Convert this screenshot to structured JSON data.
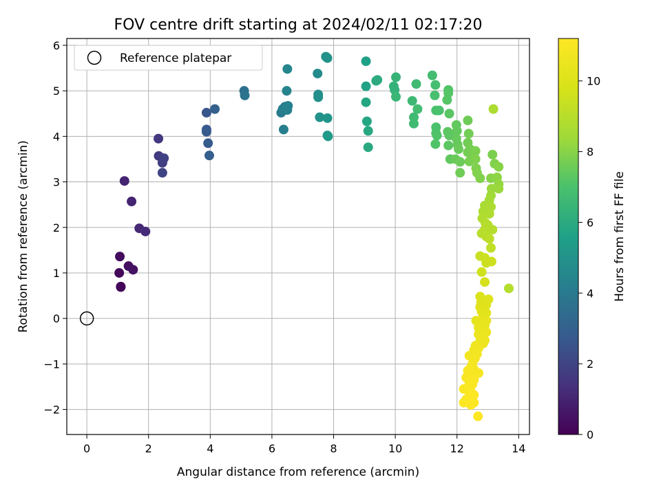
{
  "chart_data": {
    "type": "scatter",
    "title": "FOV centre drift starting at 2024/02/11 02:17:20",
    "xlabel": "Angular distance from reference (arcmin)",
    "ylabel": "Rotation from reference (arcmin)",
    "xlim": [
      -0.65,
      14.35
    ],
    "ylim": [
      -2.55,
      6.15
    ],
    "xticks": [
      0,
      2,
      4,
      6,
      8,
      10,
      12,
      14
    ],
    "yticks": [
      -2,
      -1,
      0,
      1,
      2,
      3,
      4,
      5,
      6
    ],
    "grid": true,
    "legend": {
      "position": "upper-left",
      "entries": [
        "Reference platepar"
      ]
    },
    "reference_point": {
      "x": 0,
      "y": 0
    },
    "colorbar": {
      "label": "Hours from first FF file",
      "colormap": "viridis",
      "range": [
        0,
        11.2
      ],
      "ticks": [
        0,
        2,
        4,
        6,
        8,
        10
      ]
    },
    "points": [
      {
        "x": 1.1,
        "y": 0.7,
        "c": 0.1
      },
      {
        "x": 1.1,
        "y": 0.69,
        "c": 0.15
      },
      {
        "x": 1.05,
        "y": 1.0,
        "c": 0.2
      },
      {
        "x": 1.07,
        "y": 1.36,
        "c": 0.3
      },
      {
        "x": 1.35,
        "y": 1.15,
        "c": 0.4
      },
      {
        "x": 1.5,
        "y": 1.07,
        "c": 0.5
      },
      {
        "x": 1.22,
        "y": 3.02,
        "c": 1.0
      },
      {
        "x": 1.45,
        "y": 2.57,
        "c": 1.0
      },
      {
        "x": 1.7,
        "y": 1.98,
        "c": 1.1
      },
      {
        "x": 1.9,
        "y": 1.91,
        "c": 1.2
      },
      {
        "x": 2.32,
        "y": 3.95,
        "c": 1.6
      },
      {
        "x": 2.33,
        "y": 3.57,
        "c": 1.7
      },
      {
        "x": 2.45,
        "y": 3.42,
        "c": 1.8
      },
      {
        "x": 2.5,
        "y": 3.52,
        "c": 1.9
      },
      {
        "x": 2.45,
        "y": 3.2,
        "c": 2.0
      },
      {
        "x": 3.88,
        "y": 4.52,
        "c": 2.6
      },
      {
        "x": 3.88,
        "y": 4.15,
        "c": 2.7
      },
      {
        "x": 3.88,
        "y": 4.1,
        "c": 2.75
      },
      {
        "x": 3.93,
        "y": 3.85,
        "c": 2.8
      },
      {
        "x": 3.97,
        "y": 3.58,
        "c": 2.9
      },
      {
        "x": 4.15,
        "y": 4.6,
        "c": 3.0
      },
      {
        "x": 5.1,
        "y": 5.0,
        "c": 3.6
      },
      {
        "x": 5.12,
        "y": 4.9,
        "c": 3.7
      },
      {
        "x": 6.3,
        "y": 4.52,
        "c": 4.0
      },
      {
        "x": 6.35,
        "y": 4.6,
        "c": 4.1
      },
      {
        "x": 6.42,
        "y": 4.65,
        "c": 4.2
      },
      {
        "x": 6.5,
        "y": 4.58,
        "c": 4.25
      },
      {
        "x": 6.52,
        "y": 4.67,
        "c": 4.3
      },
      {
        "x": 6.38,
        "y": 4.15,
        "c": 4.2
      },
      {
        "x": 6.48,
        "y": 5.0,
        "c": 4.4
      },
      {
        "x": 6.5,
        "y": 5.48,
        "c": 4.5
      },
      {
        "x": 7.48,
        "y": 5.38,
        "c": 4.7
      },
      {
        "x": 7.5,
        "y": 4.92,
        "c": 4.8
      },
      {
        "x": 7.5,
        "y": 4.86,
        "c": 4.85
      },
      {
        "x": 7.55,
        "y": 4.42,
        "c": 5.0
      },
      {
        "x": 7.75,
        "y": 5.75,
        "c": 4.9
      },
      {
        "x": 7.8,
        "y": 5.72,
        "c": 5.0
      },
      {
        "x": 7.8,
        "y": 4.4,
        "c": 5.1
      },
      {
        "x": 7.8,
        "y": 4.02,
        "c": 5.2
      },
      {
        "x": 7.82,
        "y": 4.0,
        "c": 5.3
      },
      {
        "x": 9.05,
        "y": 5.65,
        "c": 5.6
      },
      {
        "x": 9.05,
        "y": 5.1,
        "c": 5.7
      },
      {
        "x": 9.05,
        "y": 4.75,
        "c": 5.8
      },
      {
        "x": 9.08,
        "y": 4.33,
        "c": 5.8
      },
      {
        "x": 9.12,
        "y": 4.12,
        "c": 5.9
      },
      {
        "x": 9.12,
        "y": 3.76,
        "c": 5.95
      },
      {
        "x": 9.38,
        "y": 5.22,
        "c": 6.0
      },
      {
        "x": 9.42,
        "y": 5.24,
        "c": 6.05
      },
      {
        "x": 9.95,
        "y": 5.1,
        "c": 6.3
      },
      {
        "x": 9.98,
        "y": 5.02,
        "c": 6.3
      },
      {
        "x": 10.02,
        "y": 5.3,
        "c": 6.4
      },
      {
        "x": 10.02,
        "y": 4.87,
        "c": 6.5
      },
      {
        "x": 10.55,
        "y": 4.78,
        "c": 6.6
      },
      {
        "x": 10.6,
        "y": 4.42,
        "c": 6.7
      },
      {
        "x": 10.6,
        "y": 4.28,
        "c": 6.7
      },
      {
        "x": 10.68,
        "y": 5.15,
        "c": 6.7
      },
      {
        "x": 10.72,
        "y": 4.6,
        "c": 6.8
      },
      {
        "x": 11.2,
        "y": 5.34,
        "c": 6.8
      },
      {
        "x": 11.3,
        "y": 5.13,
        "c": 6.85
      },
      {
        "x": 11.28,
        "y": 4.9,
        "c": 6.9
      },
      {
        "x": 11.32,
        "y": 4.57,
        "c": 6.95
      },
      {
        "x": 11.42,
        "y": 4.57,
        "c": 7.0
      },
      {
        "x": 11.32,
        "y": 4.2,
        "c": 7.0
      },
      {
        "x": 11.32,
        "y": 4.07,
        "c": 7.05
      },
      {
        "x": 11.35,
        "y": 4.02,
        "c": 7.1
      },
      {
        "x": 11.3,
        "y": 3.83,
        "c": 7.1
      },
      {
        "x": 11.72,
        "y": 5.02,
        "c": 7.1
      },
      {
        "x": 11.72,
        "y": 4.95,
        "c": 7.2
      },
      {
        "x": 11.68,
        "y": 4.8,
        "c": 7.2
      },
      {
        "x": 11.75,
        "y": 4.5,
        "c": 7.25
      },
      {
        "x": 11.7,
        "y": 4.1,
        "c": 7.3
      },
      {
        "x": 11.75,
        "y": 4.02,
        "c": 7.3
      },
      {
        "x": 11.72,
        "y": 3.8,
        "c": 7.3
      },
      {
        "x": 11.78,
        "y": 3.5,
        "c": 7.35
      },
      {
        "x": 11.98,
        "y": 4.25,
        "c": 7.4
      },
      {
        "x": 12.0,
        "y": 4.12,
        "c": 7.4
      },
      {
        "x": 11.98,
        "y": 3.95,
        "c": 7.45
      },
      {
        "x": 12.02,
        "y": 3.82,
        "c": 7.45
      },
      {
        "x": 12.05,
        "y": 3.72,
        "c": 7.5
      },
      {
        "x": 11.95,
        "y": 3.5,
        "c": 7.5
      },
      {
        "x": 12.1,
        "y": 3.44,
        "c": 7.55
      },
      {
        "x": 12.1,
        "y": 3.2,
        "c": 7.6
      },
      {
        "x": 12.35,
        "y": 4.35,
        "c": 7.6
      },
      {
        "x": 12.38,
        "y": 4.06,
        "c": 7.65
      },
      {
        "x": 12.35,
        "y": 3.86,
        "c": 7.65
      },
      {
        "x": 12.42,
        "y": 3.72,
        "c": 7.7
      },
      {
        "x": 12.35,
        "y": 3.65,
        "c": 7.7
      },
      {
        "x": 12.4,
        "y": 3.45,
        "c": 7.75
      },
      {
        "x": 12.55,
        "y": 3.6,
        "c": 7.8
      },
      {
        "x": 12.6,
        "y": 3.68,
        "c": 7.8
      },
      {
        "x": 12.6,
        "y": 3.5,
        "c": 7.85
      },
      {
        "x": 12.62,
        "y": 3.3,
        "c": 7.85
      },
      {
        "x": 12.65,
        "y": 3.2,
        "c": 7.9
      },
      {
        "x": 12.75,
        "y": 3.08,
        "c": 7.9
      },
      {
        "x": 13.15,
        "y": 3.6,
        "c": 7.8
      },
      {
        "x": 13.22,
        "y": 3.4,
        "c": 7.9
      },
      {
        "x": 13.35,
        "y": 3.33,
        "c": 8.0
      },
      {
        "x": 13.1,
        "y": 3.08,
        "c": 8.0
      },
      {
        "x": 13.3,
        "y": 3.1,
        "c": 8.1
      },
      {
        "x": 13.35,
        "y": 2.95,
        "c": 8.2
      },
      {
        "x": 13.12,
        "y": 2.85,
        "c": 8.3
      },
      {
        "x": 13.35,
        "y": 2.85,
        "c": 8.3
      },
      {
        "x": 13.1,
        "y": 2.7,
        "c": 8.4
      },
      {
        "x": 13.05,
        "y": 2.6,
        "c": 8.5
      },
      {
        "x": 13.02,
        "y": 2.5,
        "c": 8.6
      },
      {
        "x": 12.9,
        "y": 2.48,
        "c": 8.6
      },
      {
        "x": 13.1,
        "y": 2.45,
        "c": 8.7
      },
      {
        "x": 12.85,
        "y": 2.35,
        "c": 8.7
      },
      {
        "x": 13.05,
        "y": 2.3,
        "c": 8.75
      },
      {
        "x": 12.82,
        "y": 2.2,
        "c": 8.8
      },
      {
        "x": 12.92,
        "y": 2.1,
        "c": 8.85
      },
      {
        "x": 13.0,
        "y": 2.05,
        "c": 8.9
      },
      {
        "x": 13.15,
        "y": 1.95,
        "c": 8.9
      },
      {
        "x": 12.9,
        "y": 1.95,
        "c": 8.95
      },
      {
        "x": 12.8,
        "y": 1.87,
        "c": 9.0
      },
      {
        "x": 12.95,
        "y": 1.8,
        "c": 9.0
      },
      {
        "x": 13.05,
        "y": 1.75,
        "c": 9.1
      },
      {
        "x": 13.1,
        "y": 1.55,
        "c": 9.2
      },
      {
        "x": 13.18,
        "y": 4.6,
        "c": 8.7
      },
      {
        "x": 13.68,
        "y": 0.66,
        "c": 8.9
      },
      {
        "x": 12.75,
        "y": 1.37,
        "c": 9.4
      },
      {
        "x": 12.9,
        "y": 1.33,
        "c": 9.45
      },
      {
        "x": 12.95,
        "y": 1.22,
        "c": 9.5
      },
      {
        "x": 13.12,
        "y": 1.25,
        "c": 9.5
      },
      {
        "x": 12.8,
        "y": 1.02,
        "c": 9.6
      },
      {
        "x": 12.9,
        "y": 0.8,
        "c": 9.7
      },
      {
        "x": 12.75,
        "y": 0.48,
        "c": 9.9
      },
      {
        "x": 12.78,
        "y": 0.35,
        "c": 10.0
      },
      {
        "x": 12.92,
        "y": 0.4,
        "c": 10.0
      },
      {
        "x": 13.02,
        "y": 0.42,
        "c": 10.05
      },
      {
        "x": 12.75,
        "y": 0.25,
        "c": 10.1
      },
      {
        "x": 12.95,
        "y": 0.3,
        "c": 10.1
      },
      {
        "x": 12.8,
        "y": 0.15,
        "c": 10.2
      },
      {
        "x": 12.95,
        "y": 0.12,
        "c": 10.2
      },
      {
        "x": 12.85,
        "y": 0.05,
        "c": 10.25
      },
      {
        "x": 12.75,
        "y": -0.05,
        "c": 10.3
      },
      {
        "x": 12.62,
        "y": -0.05,
        "c": 10.3
      },
      {
        "x": 12.95,
        "y": -0.05,
        "c": 10.35
      },
      {
        "x": 12.9,
        "y": -0.15,
        "c": 10.4
      },
      {
        "x": 12.7,
        "y": -0.2,
        "c": 10.4
      },
      {
        "x": 12.85,
        "y": -0.25,
        "c": 10.45
      },
      {
        "x": 12.95,
        "y": -0.3,
        "c": 10.5
      },
      {
        "x": 12.7,
        "y": -0.35,
        "c": 10.5
      },
      {
        "x": 12.82,
        "y": -0.4,
        "c": 10.55
      },
      {
        "x": 12.9,
        "y": -0.48,
        "c": 10.6
      },
      {
        "x": 12.75,
        "y": -0.5,
        "c": 10.6
      },
      {
        "x": 12.85,
        "y": -0.55,
        "c": 10.65
      },
      {
        "x": 12.6,
        "y": -0.6,
        "c": 10.7
      },
      {
        "x": 12.7,
        "y": -0.65,
        "c": 10.7
      },
      {
        "x": 12.55,
        "y": -0.7,
        "c": 10.75
      },
      {
        "x": 12.65,
        "y": -0.78,
        "c": 10.8
      },
      {
        "x": 12.4,
        "y": -0.82,
        "c": 10.8
      },
      {
        "x": 12.58,
        "y": -0.88,
        "c": 10.85
      },
      {
        "x": 12.5,
        "y": -1.0,
        "c": 10.9
      },
      {
        "x": 12.45,
        "y": -1.08,
        "c": 10.9
      },
      {
        "x": 12.55,
        "y": -1.12,
        "c": 10.95
      },
      {
        "x": 12.35,
        "y": -1.15,
        "c": 11.0
      },
      {
        "x": 12.7,
        "y": -1.2,
        "c": 10.95
      },
      {
        "x": 12.45,
        "y": -1.25,
        "c": 11.0
      },
      {
        "x": 12.3,
        "y": -1.3,
        "c": 11.0
      },
      {
        "x": 12.55,
        "y": -1.35,
        "c": 11.05
      },
      {
        "x": 12.4,
        "y": -1.4,
        "c": 11.05
      },
      {
        "x": 12.5,
        "y": -1.45,
        "c": 11.1
      },
      {
        "x": 12.22,
        "y": -1.55,
        "c": 11.1
      },
      {
        "x": 12.35,
        "y": -1.58,
        "c": 11.1
      },
      {
        "x": 12.45,
        "y": -1.62,
        "c": 11.12
      },
      {
        "x": 12.55,
        "y": -1.68,
        "c": 11.12
      },
      {
        "x": 12.4,
        "y": -1.72,
        "c": 11.15
      },
      {
        "x": 12.3,
        "y": -1.78,
        "c": 11.15
      },
      {
        "x": 12.22,
        "y": -1.85,
        "c": 11.15
      },
      {
        "x": 12.55,
        "y": -1.85,
        "c": 11.18
      },
      {
        "x": 12.45,
        "y": -1.9,
        "c": 11.18
      },
      {
        "x": 12.68,
        "y": -2.15,
        "c": 11.2
      }
    ]
  }
}
